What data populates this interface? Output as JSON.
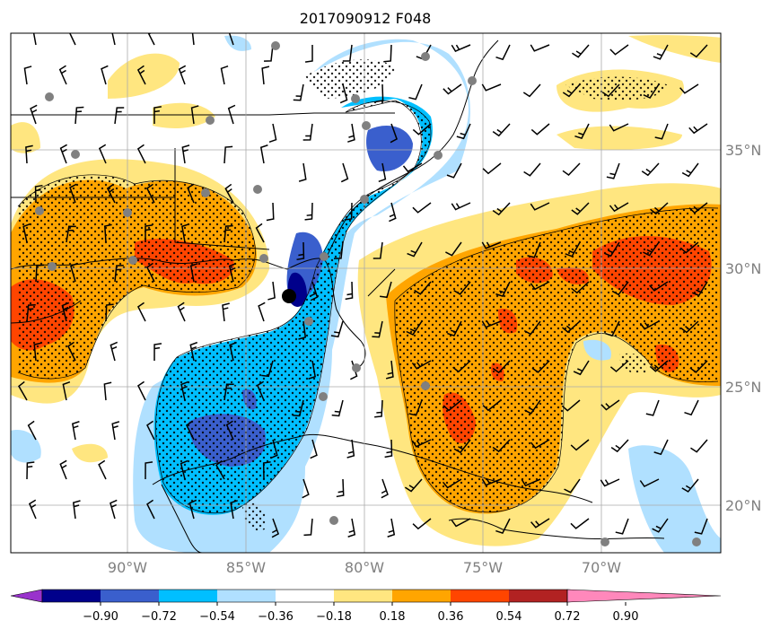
{
  "title": "2017090912 F048",
  "lat_labels": [
    "35°N",
    "30°N",
    "25°N",
    "20°N"
  ],
  "lon_labels": [
    "90°W",
    "85°W",
    "80°W",
    "75°W",
    "70°W"
  ],
  "colorbar": {
    "ticks": [
      "−0.90",
      "−0.72",
      "−0.54",
      "−0.36",
      "−0.18",
      "0.18",
      "0.36",
      "0.54",
      "0.72",
      "0.90"
    ],
    "colors": [
      "#9933cc",
      "#00008b",
      "#3a5fcd",
      "#00bfff",
      "#b0e0ff",
      "#ffffff",
      "#ffe680",
      "#ffa500",
      "#ff4500",
      "#b22222",
      "#ff88bb"
    ]
  },
  "colors": {
    "grid": "#aaaaaa",
    "coast": "#000000",
    "station": "#808080",
    "center_marker": "#000000"
  },
  "chart_data": {
    "type": "heatmap",
    "lat_ticks": [
      35,
      30,
      25,
      20
    ],
    "lon_ticks": [
      -90,
      -85,
      -80,
      -75,
      -70
    ],
    "extent_lon": [
      -94.8,
      -64.8
    ],
    "extent_lat": [
      18,
      40
    ],
    "levels": [
      -0.9,
      -0.72,
      -0.54,
      -0.36,
      -0.18,
      0.18,
      0.36,
      0.54,
      0.72,
      0.9
    ],
    "center": {
      "lon": -83.0,
      "lat": 28.8
    }
  }
}
